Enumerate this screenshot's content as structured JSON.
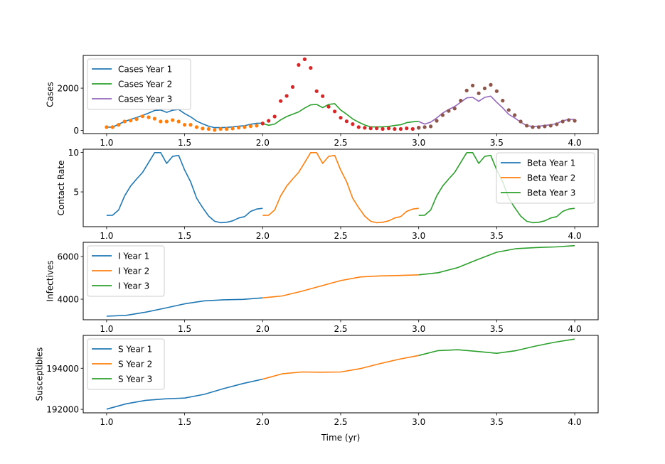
{
  "figure": {
    "xlabel": "Time (yr)"
  },
  "chart_data": [
    {
      "type": "line",
      "panel": "cases",
      "ylabel": "Cases",
      "xlim": [
        0.85,
        4.15
      ],
      "ylim": [
        -150,
        3550
      ],
      "xticks": [
        1.0,
        1.5,
        2.0,
        2.5,
        3.0,
        3.5,
        4.0
      ],
      "xtick_labels": [
        "1.0",
        "1.5",
        "2.0",
        "2.5",
        "3.0",
        "3.5",
        "4.0"
      ],
      "yticks": [
        0,
        2000
      ],
      "ytick_labels": [
        "0",
        "2000"
      ],
      "legend": "upper-left",
      "series": [
        {
          "name": "Cases Year 1",
          "kind": "line",
          "color": "#1f77b4",
          "x_start": 1.0,
          "values": [
            157,
            157,
            290,
            423,
            523,
            610,
            710,
            823,
            943,
            967,
            857,
            957,
            990,
            800,
            643,
            443,
            310,
            200,
            133,
            133,
            143,
            167,
            200,
            223,
            290,
            333,
            343
          ]
        },
        {
          "name": "Cases Year 2",
          "kind": "line",
          "color": "#2ca02c",
          "x_start": 2.0,
          "values": [
            323,
            243,
            300,
            500,
            657,
            767,
            877,
            1057,
            1210,
            1233,
            1077,
            1233,
            1267,
            967,
            767,
            543,
            390,
            257,
            167,
            167,
            167,
            190,
            233,
            267,
            367,
            410,
            433
          ]
        },
        {
          "name": "Cases Year 3",
          "kind": "line",
          "color": "#9467bd",
          "x_start": 3.0,
          "values": [
            423,
            300,
            390,
            590,
            823,
            990,
            1133,
            1333,
            1543,
            1567,
            1377,
            1567,
            1623,
            1333,
            1067,
            757,
            590,
            390,
            223,
            190,
            200,
            233,
            267,
            323,
            457,
            523,
            523
          ]
        },
        {
          "name": "Data Year 1",
          "kind": "dots",
          "color": "#ff7f0e",
          "x_start": 1.0,
          "in_legend": false,
          "values": [
            157,
            157,
            267,
            423,
            467,
            533,
            667,
            623,
            557,
            423,
            423,
            490,
            423,
            267,
            267,
            157,
            90,
            67,
            23,
            67,
            67,
            90,
            133,
            157,
            200,
            223,
            333
          ]
        },
        {
          "name": "Data Year 2",
          "kind": "dots",
          "color": "#d62728",
          "x_start": 2.0,
          "in_legend": false,
          "values": [
            323,
            457,
            657,
            1390,
            1633,
            2057,
            3100,
            3367,
            2957,
            1857,
            1623,
            1123,
            900,
            600,
            433,
            300,
            157,
            123,
            100,
            100,
            67,
            100,
            67,
            67,
            100,
            67,
            133
          ]
        },
        {
          "name": "Data Year 3",
          "kind": "dots",
          "color": "#8c564b",
          "x_start": 3.0,
          "in_legend": false,
          "values": [
            123,
            157,
            190,
            457,
            723,
            923,
            1033,
            1410,
            1890,
            2123,
            1757,
            1990,
            2157,
            1857,
            1410,
            967,
            723,
            423,
            223,
            157,
            157,
            190,
            223,
            290,
            423,
            490,
            457
          ]
        }
      ]
    },
    {
      "type": "line",
      "panel": "contact-rate",
      "ylabel": "Contact Rate",
      "xlim": [
        0.85,
        4.15
      ],
      "ylim": [
        0.6,
        10.4
      ],
      "xticks": [
        1.0,
        1.5,
        2.0,
        2.5,
        3.0,
        3.5,
        4.0
      ],
      "xtick_labels": [
        "1.0",
        "1.5",
        "2.0",
        "2.5",
        "3.0",
        "3.5",
        "4.0"
      ],
      "yticks": [
        5,
        10
      ],
      "ytick_labels": [
        "5",
        "10"
      ],
      "legend": "upper-right",
      "series": [
        {
          "name": "Beta Year 1",
          "kind": "line",
          "color": "#1f77b4",
          "x_start": 1.0,
          "values": [
            2.03,
            2.05,
            2.71,
            4.49,
            5.74,
            6.63,
            7.47,
            8.72,
            9.97,
            9.97,
            8.6,
            9.49,
            9.62,
            7.77,
            6.28,
            4.2,
            3.01,
            1.94,
            1.28,
            1.1,
            1.16,
            1.34,
            1.7,
            1.88,
            2.53,
            2.83,
            2.92
          ]
        },
        {
          "name": "Beta Year 2",
          "kind": "line",
          "color": "#ff7f0e",
          "x_start": 2.0,
          "values": [
            2.03,
            2.05,
            2.71,
            4.49,
            5.74,
            6.63,
            7.47,
            8.72,
            9.97,
            9.97,
            8.6,
            9.49,
            9.62,
            7.77,
            6.28,
            4.2,
            3.01,
            1.94,
            1.28,
            1.1,
            1.16,
            1.34,
            1.7,
            1.88,
            2.53,
            2.83,
            2.92
          ]
        },
        {
          "name": "Beta Year 3",
          "kind": "line",
          "color": "#2ca02c",
          "x_start": 3.0,
          "values": [
            2.03,
            2.05,
            2.71,
            4.49,
            5.74,
            6.63,
            7.47,
            8.72,
            9.97,
            9.97,
            8.6,
            9.49,
            9.62,
            7.77,
            6.28,
            4.2,
            3.01,
            1.94,
            1.28,
            1.1,
            1.16,
            1.34,
            1.7,
            1.88,
            2.53,
            2.83,
            2.92
          ]
        }
      ]
    },
    {
      "type": "line",
      "panel": "infectives",
      "ylabel": "Infectives",
      "xlim": [
        0.85,
        4.15
      ],
      "ylim": [
        3035,
        6665
      ],
      "xticks": [
        1.0,
        1.5,
        2.0,
        2.5,
        3.0,
        3.5,
        4.0
      ],
      "xtick_labels": [
        "1.0",
        "1.5",
        "2.0",
        "2.5",
        "3.0",
        "3.5",
        "4.0"
      ],
      "yticks": [
        4000,
        6000
      ],
      "ytick_labels": [
        "4000",
        "6000"
      ],
      "legend": "upper-left",
      "series": [
        {
          "name": "I Year 1",
          "kind": "line",
          "color": "#1f77b4",
          "x": [
            1.0,
            1.125,
            1.25,
            1.375,
            1.5,
            1.625,
            1.75,
            1.875,
            2.0
          ],
          "values": [
            3200,
            3240,
            3390,
            3580,
            3780,
            3920,
            3970,
            3990,
            4060
          ]
        },
        {
          "name": "I Year 2",
          "kind": "line",
          "color": "#ff7f0e",
          "x": [
            2.0,
            2.125,
            2.25,
            2.375,
            2.5,
            2.625,
            2.75,
            2.875,
            3.0
          ],
          "values": [
            4060,
            4150,
            4370,
            4620,
            4870,
            5040,
            5090,
            5110,
            5140
          ]
        },
        {
          "name": "I Year 3",
          "kind": "line",
          "color": "#2ca02c",
          "x": [
            3.0,
            3.125,
            3.25,
            3.375,
            3.5,
            3.625,
            3.75,
            3.875,
            4.0
          ],
          "values": [
            5140,
            5240,
            5480,
            5850,
            6200,
            6370,
            6420,
            6450,
            6510
          ]
        }
      ]
    },
    {
      "type": "line",
      "panel": "susceptibles",
      "ylabel": "Susceptibles",
      "xlim": [
        0.85,
        4.15
      ],
      "ylim": [
        191830,
        195600
      ],
      "xticks": [
        1.0,
        1.5,
        2.0,
        2.5,
        3.0,
        3.5,
        4.0
      ],
      "xtick_labels": [
        "1.0",
        "1.5",
        "2.0",
        "2.5",
        "3.0",
        "3.5",
        "4.0"
      ],
      "yticks": [
        192000,
        194000
      ],
      "ytick_labels": [
        "192000",
        "194000"
      ],
      "legend": "upper-left",
      "series": [
        {
          "name": "S Year 1",
          "kind": "line",
          "color": "#1f77b4",
          "x": [
            1.0,
            1.125,
            1.25,
            1.375,
            1.5,
            1.625,
            1.75,
            1.875,
            2.0
          ],
          "values": [
            192010,
            192270,
            192440,
            192510,
            192550,
            192730,
            193010,
            193260,
            193470
          ]
        },
        {
          "name": "S Year 2",
          "kind": "line",
          "color": "#ff7f0e",
          "x": [
            2.0,
            2.125,
            2.25,
            2.375,
            2.5,
            2.625,
            2.75,
            2.875,
            3.0
          ],
          "values": [
            193470,
            193730,
            193820,
            193810,
            193820,
            193980,
            194220,
            194440,
            194620
          ]
        },
        {
          "name": "S Year 3",
          "kind": "line",
          "color": "#2ca02c",
          "x": [
            3.0,
            3.125,
            3.25,
            3.375,
            3.5,
            3.625,
            3.75,
            3.875,
            4.0
          ],
          "values": [
            194620,
            194860,
            194900,
            194820,
            194730,
            194860,
            195080,
            195270,
            195420
          ]
        }
      ]
    }
  ]
}
